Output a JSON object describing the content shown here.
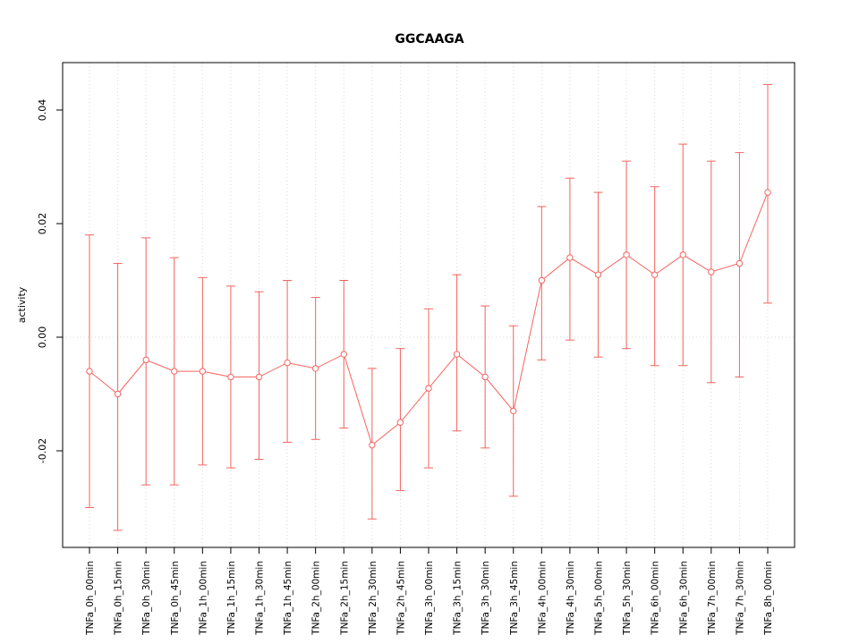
{
  "page": {
    "background": "#ffffff"
  },
  "chart_data": {
    "type": "line",
    "title": "GGCAAGA",
    "xlabel": "",
    "ylabel": "activity",
    "legend": "none",
    "grid": "dotted vertical line at each category; dotted horizontal line at y=0",
    "point_style": "open circle with vertical error bars (caps)",
    "series_color": "#F4645F",
    "grid_color": "#D9D9D9",
    "axis_color": "#000000",
    "ylim": [
      -0.037,
      0.0483
    ],
    "y_tick_values": [
      -0.02,
      0,
      0.02,
      0.04
    ],
    "y_tick_labels": [
      "-0.02",
      "0.00",
      "0.02",
      "0.04"
    ],
    "categories": [
      "TNFa_0h_00min",
      "TNFa_0h_15min",
      "TNFa_0h_30min",
      "TNFa_0h_45min",
      "TNFa_1h_00min",
      "TNFa_1h_15min",
      "TNFa_1h_30min",
      "TNFa_1h_45min",
      "TNFa_2h_00min",
      "TNFa_2h_15min",
      "TNFa_2h_30min",
      "TNFa_2h_45min",
      "TNFa_3h_00min",
      "TNFa_3h_15min",
      "TNFa_3h_30min",
      "TNFa_3h_45min",
      "TNFa_4h_00min",
      "TNFa_4h_30min",
      "TNFa_5h_00min",
      "TNFa_5h_30min",
      "TNFa_6h_00min",
      "TNFa_6h_30min",
      "TNFa_7h_00min",
      "TNFa_7h_30min",
      "TNFa_8h_00min"
    ],
    "series": [
      {
        "name": "activity",
        "values": [
          -0.006,
          -0.01,
          -0.004,
          -0.006,
          -0.006,
          -0.007,
          -0.007,
          -0.0045,
          -0.0055,
          -0.003,
          -0.019,
          -0.015,
          -0.009,
          -0.003,
          -0.007,
          -0.013,
          0.01,
          0.014,
          0.011,
          0.0145,
          0.011,
          0.0145,
          0.0115,
          0.013,
          0.0255
        ],
        "err_upper": [
          0.018,
          0.013,
          0.0175,
          0.014,
          0.0105,
          0.009,
          0.008,
          0.01,
          0.007,
          0.01,
          -0.0055,
          -0.002,
          0.005,
          0.011,
          0.0055,
          0.002,
          0.023,
          0.028,
          0.0255,
          0.031,
          0.0265,
          0.034,
          0.031,
          0.0325,
          0.0445
        ],
        "err_lower": [
          -0.03,
          -0.034,
          -0.026,
          -0.026,
          -0.0225,
          -0.023,
          -0.0215,
          -0.0185,
          -0.018,
          -0.016,
          -0.032,
          -0.027,
          -0.023,
          -0.0165,
          -0.0195,
          -0.028,
          -0.004,
          -0.0005,
          -0.0035,
          -0.002,
          -0.005,
          -0.005,
          -0.008,
          -0.007,
          0.006
        ]
      }
    ]
  }
}
